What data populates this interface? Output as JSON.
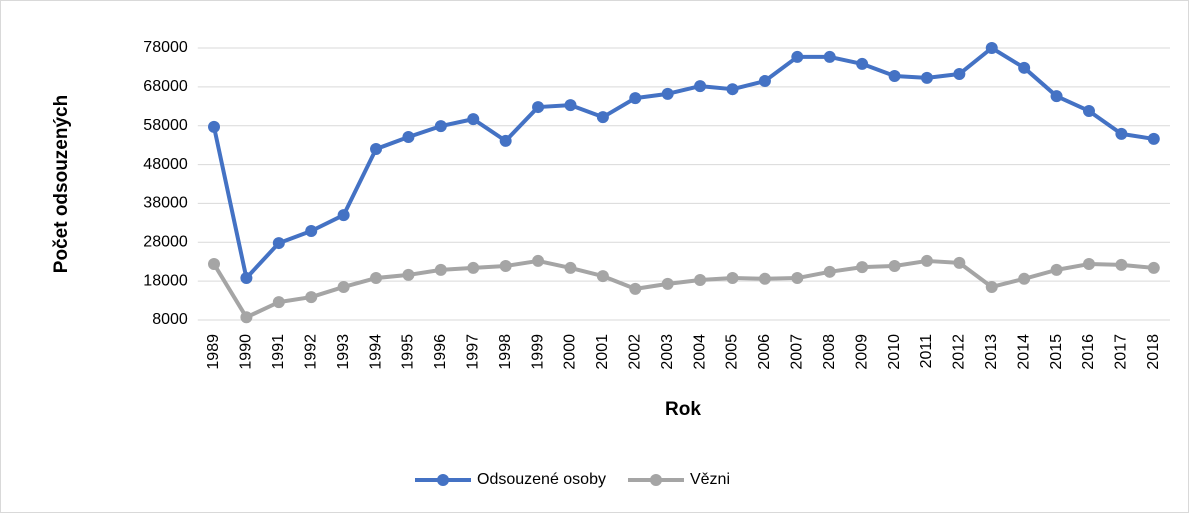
{
  "chart_data": {
    "type": "line",
    "x_label": "Rok",
    "y_label": "Počet odsouzených",
    "categories": [
      "1989",
      "1990",
      "1991",
      "1992",
      "1993",
      "1994",
      "1995",
      "1996",
      "1997",
      "1998",
      "1999",
      "2000",
      "2001",
      "2002",
      "2003",
      "2004",
      "2005",
      "2006",
      "2007",
      "2008",
      "2009",
      "2010",
      "2011",
      "2012",
      "2013",
      "2014",
      "2015",
      "2016",
      "2017",
      "2018"
    ],
    "series": [
      {
        "name": "Odsouzené osoby",
        "color": "#4472c4",
        "values": [
          57700,
          18800,
          27800,
          30900,
          35000,
          52000,
          55100,
          57900,
          59700,
          54100,
          62800,
          63300,
          60200,
          65100,
          66200,
          68200,
          67400,
          69500,
          75700,
          75700,
          73900,
          70800,
          70300,
          71300,
          78000,
          72900,
          65600,
          61800,
          55900,
          54600
        ]
      },
      {
        "name": "Vězni",
        "color": "#a5a5a5",
        "values": [
          22400,
          8700,
          12600,
          13900,
          16500,
          18800,
          19600,
          20900,
          21400,
          21900,
          23200,
          21400,
          19300,
          16000,
          17300,
          18300,
          18800,
          18600,
          18800,
          20400,
          21600,
          21900,
          23200,
          22700,
          16500,
          18600,
          20900,
          22400,
          22200,
          21400
        ]
      }
    ],
    "ylim": [
      8000,
      78000
    ],
    "yticks": [
      8000,
      18000,
      28000,
      38000,
      48000,
      58000,
      68000,
      78000
    ],
    "grid": true,
    "legend": "bottom"
  }
}
